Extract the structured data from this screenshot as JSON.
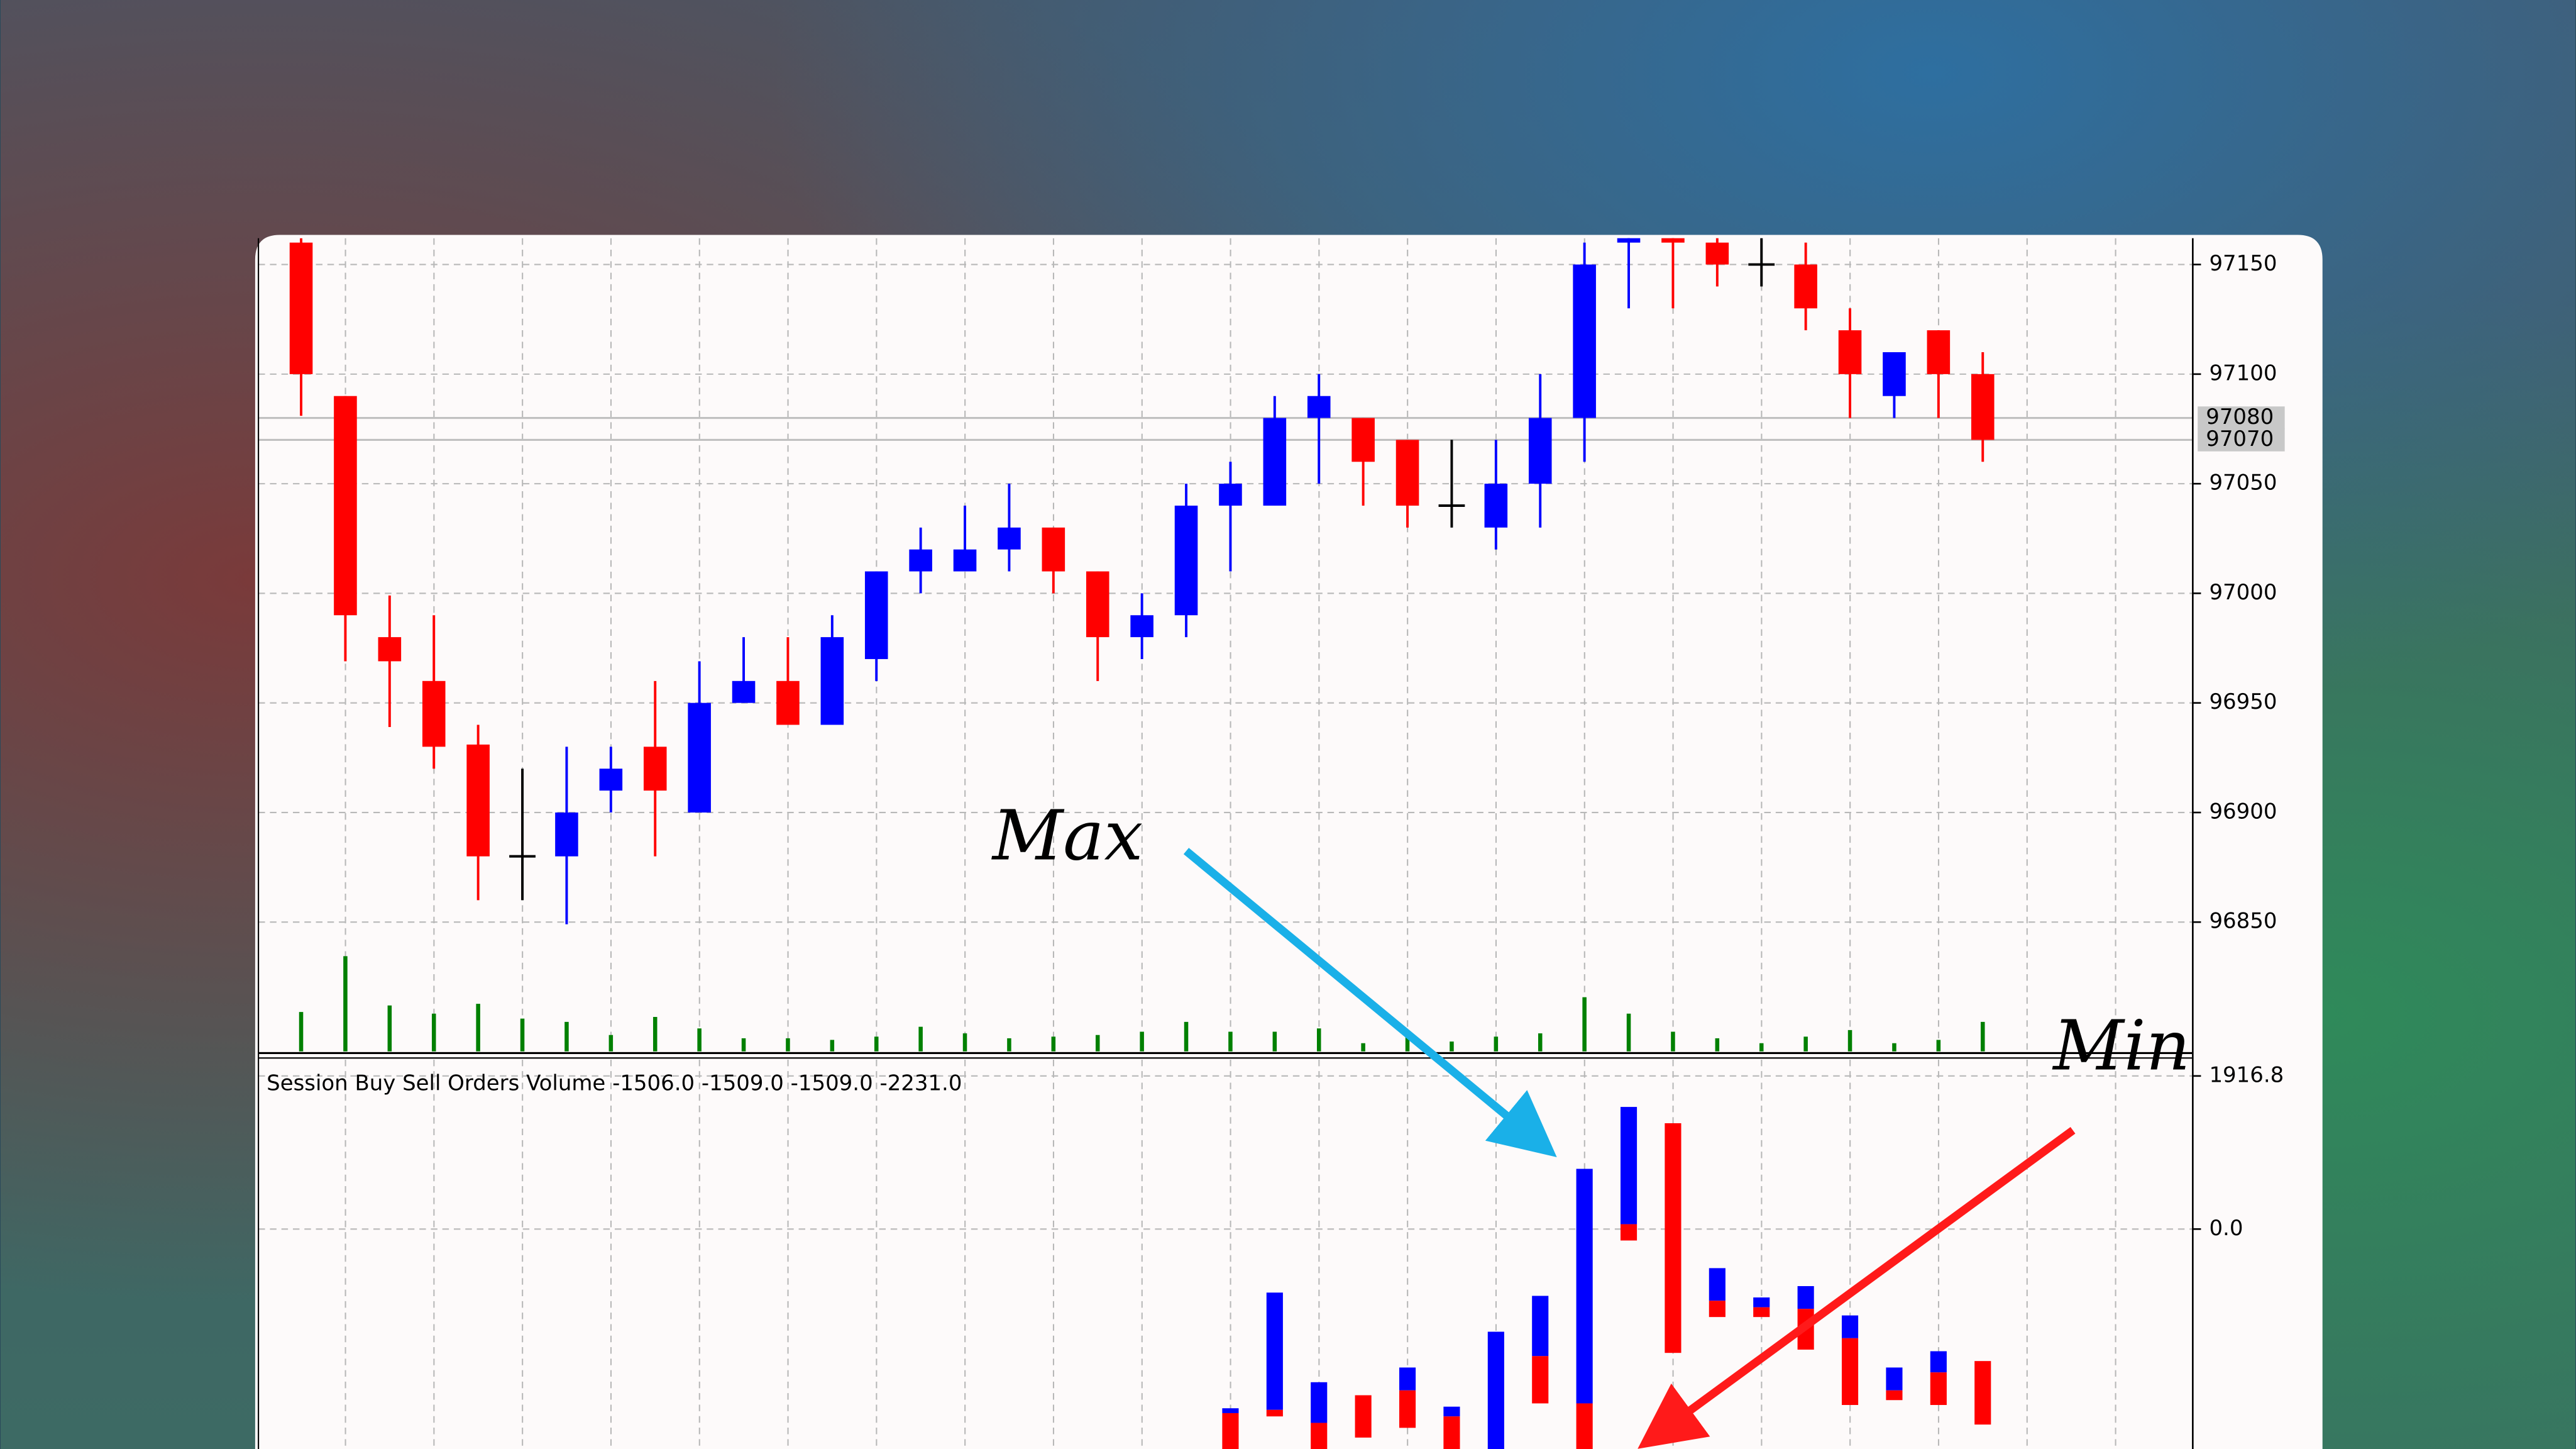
{
  "chart_data": [
    {
      "type": "candlestick",
      "categories": [
        null,
        null,
        null,
        null,
        null,
        null,
        null,
        null,
        null,
        null,
        null,
        null,
        null,
        null,
        null,
        null,
        null,
        null,
        null,
        null,
        null,
        null,
        null,
        null,
        null,
        null,
        null,
        null,
        null,
        null,
        null,
        null,
        null,
        null,
        null,
        null,
        null,
        null,
        null
      ],
      "open": [
        97160,
        97090,
        96980,
        96960,
        96931,
        96880,
        96880,
        96910,
        96930,
        96900,
        96950,
        96960,
        96940,
        96970,
        97010,
        97010,
        97020,
        97030,
        97010,
        96980,
        96990,
        97040,
        97040,
        97080,
        97080,
        97070,
        97040,
        97030,
        97050,
        97080,
        97160,
        97165,
        97160,
        97150,
        97150,
        97120,
        97090,
        97120,
        97100
      ],
      "high": [
        97162,
        97090,
        96999,
        96990,
        96940,
        96920,
        96930,
        96930,
        96960,
        96969,
        96980,
        96980,
        96990,
        97010,
        97030,
        97040,
        97050,
        97030,
        97010,
        97000,
        97050,
        97060,
        97090,
        97100,
        97080,
        97070,
        97070,
        97070,
        97100,
        97160,
        97170,
        97170,
        97165,
        97165,
        97160,
        97130,
        97110,
        97120,
        97110
      ],
      "low": [
        97081,
        96969,
        96939,
        96920,
        96860,
        96860,
        96849,
        96900,
        96880,
        96900,
        96950,
        96940,
        96940,
        96960,
        97000,
        97010,
        97010,
        97000,
        96960,
        96970,
        96980,
        97010,
        97040,
        97050,
        97040,
        97030,
        97030,
        97020,
        97030,
        97060,
        97130,
        97130,
        97140,
        97140,
        97120,
        97080,
        97080,
        97080,
        97060
      ],
      "close": [
        97100,
        96990,
        96969,
        96930,
        96880,
        96880,
        96900,
        96920,
        96910,
        96950,
        96960,
        96940,
        96980,
        97010,
        97020,
        97020,
        97030,
        97010,
        96980,
        96990,
        97040,
        97050,
        97080,
        97090,
        97060,
        97040,
        97040,
        97050,
        97080,
        97150,
        97165,
        97160,
        97150,
        97150,
        97130,
        97100,
        97110,
        97100,
        97070
      ],
      "volume": [
        24,
        58,
        28,
        23,
        29,
        20,
        18,
        10,
        21,
        14,
        8,
        8,
        7,
        9,
        15,
        11,
        8,
        9,
        10,
        12,
        18,
        12,
        12,
        14,
        5,
        10,
        6,
        9,
        11,
        33,
        23,
        12,
        8,
        5,
        9,
        13,
        5,
        7,
        18
      ],
      "ylim": [
        96791,
        97162
      ],
      "yticks": [
        96850,
        96900,
        96950,
        97000,
        97050,
        97100,
        97150
      ],
      "levels": [
        97080,
        97070
      ],
      "grid": true,
      "up_color": "#0000ff",
      "down_color": "#ff0000",
      "doji_color": "#000000",
      "volume_color": "#008000"
    },
    {
      "type": "floating_bar",
      "title": "Session Buy Sell Orders Volume -1506.0 -1509.0 -1509.0 -2231.0",
      "x": [
        21,
        22,
        23,
        24,
        25,
        26,
        27,
        28,
        29,
        30,
        31,
        32,
        33,
        34,
        35,
        36,
        37,
        38
      ],
      "blue": [
        [
          -2243,
          -2304
        ],
        [
          -795,
          -2263
        ],
        [
          -1917,
          -2426
        ],
        null,
        [
          -1733,
          -2019
        ],
        [
          -2223,
          -2345
        ],
        [
          -1285,
          -2753
        ],
        [
          -836,
          -1590
        ],
        [
          754,
          -2182
        ],
        [
          1529,
          61
        ],
        null,
        [
          -489,
          -897
        ],
        [
          -856,
          -979
        ],
        [
          -714,
          -999
        ],
        [
          -1081,
          -1366
        ],
        [
          -1733,
          -2019
        ],
        [
          -1529,
          -1794
        ],
        null
      ],
      "red": [
        [
          -2304,
          -2753
        ],
        [
          -2263,
          -2345
        ],
        [
          -2426,
          -2753
        ],
        [
          -2080,
          -2610
        ],
        [
          -2019,
          -2488
        ],
        [
          -2345,
          -2753
        ],
        null,
        [
          -1590,
          -2182
        ],
        [
          -2182,
          -2753
        ],
        [
          61,
          -143
        ],
        [
          1325,
          -1550
        ],
        [
          -897,
          -1101
        ],
        [
          -979,
          -1101
        ],
        [
          -999,
          -1509
        ],
        [
          -1366,
          -2202
        ],
        [
          -2019,
          -2141
        ],
        [
          -1794,
          -2202
        ],
        [
          -1652,
          -2447
        ]
      ],
      "ylim": [
        -2753,
        2121
      ],
      "yticks": [
        1916.8,
        {
          "value": 0,
          "label": "0.0"
        }
      ],
      "grid": true,
      "blue_color": "#0000ff",
      "red_color": "#ff0000",
      "annotations": [
        {
          "text": "Max",
          "color": "#1a9fd8"
        },
        {
          "text": "Min",
          "color": "#ff1a1a"
        }
      ]
    }
  ]
}
